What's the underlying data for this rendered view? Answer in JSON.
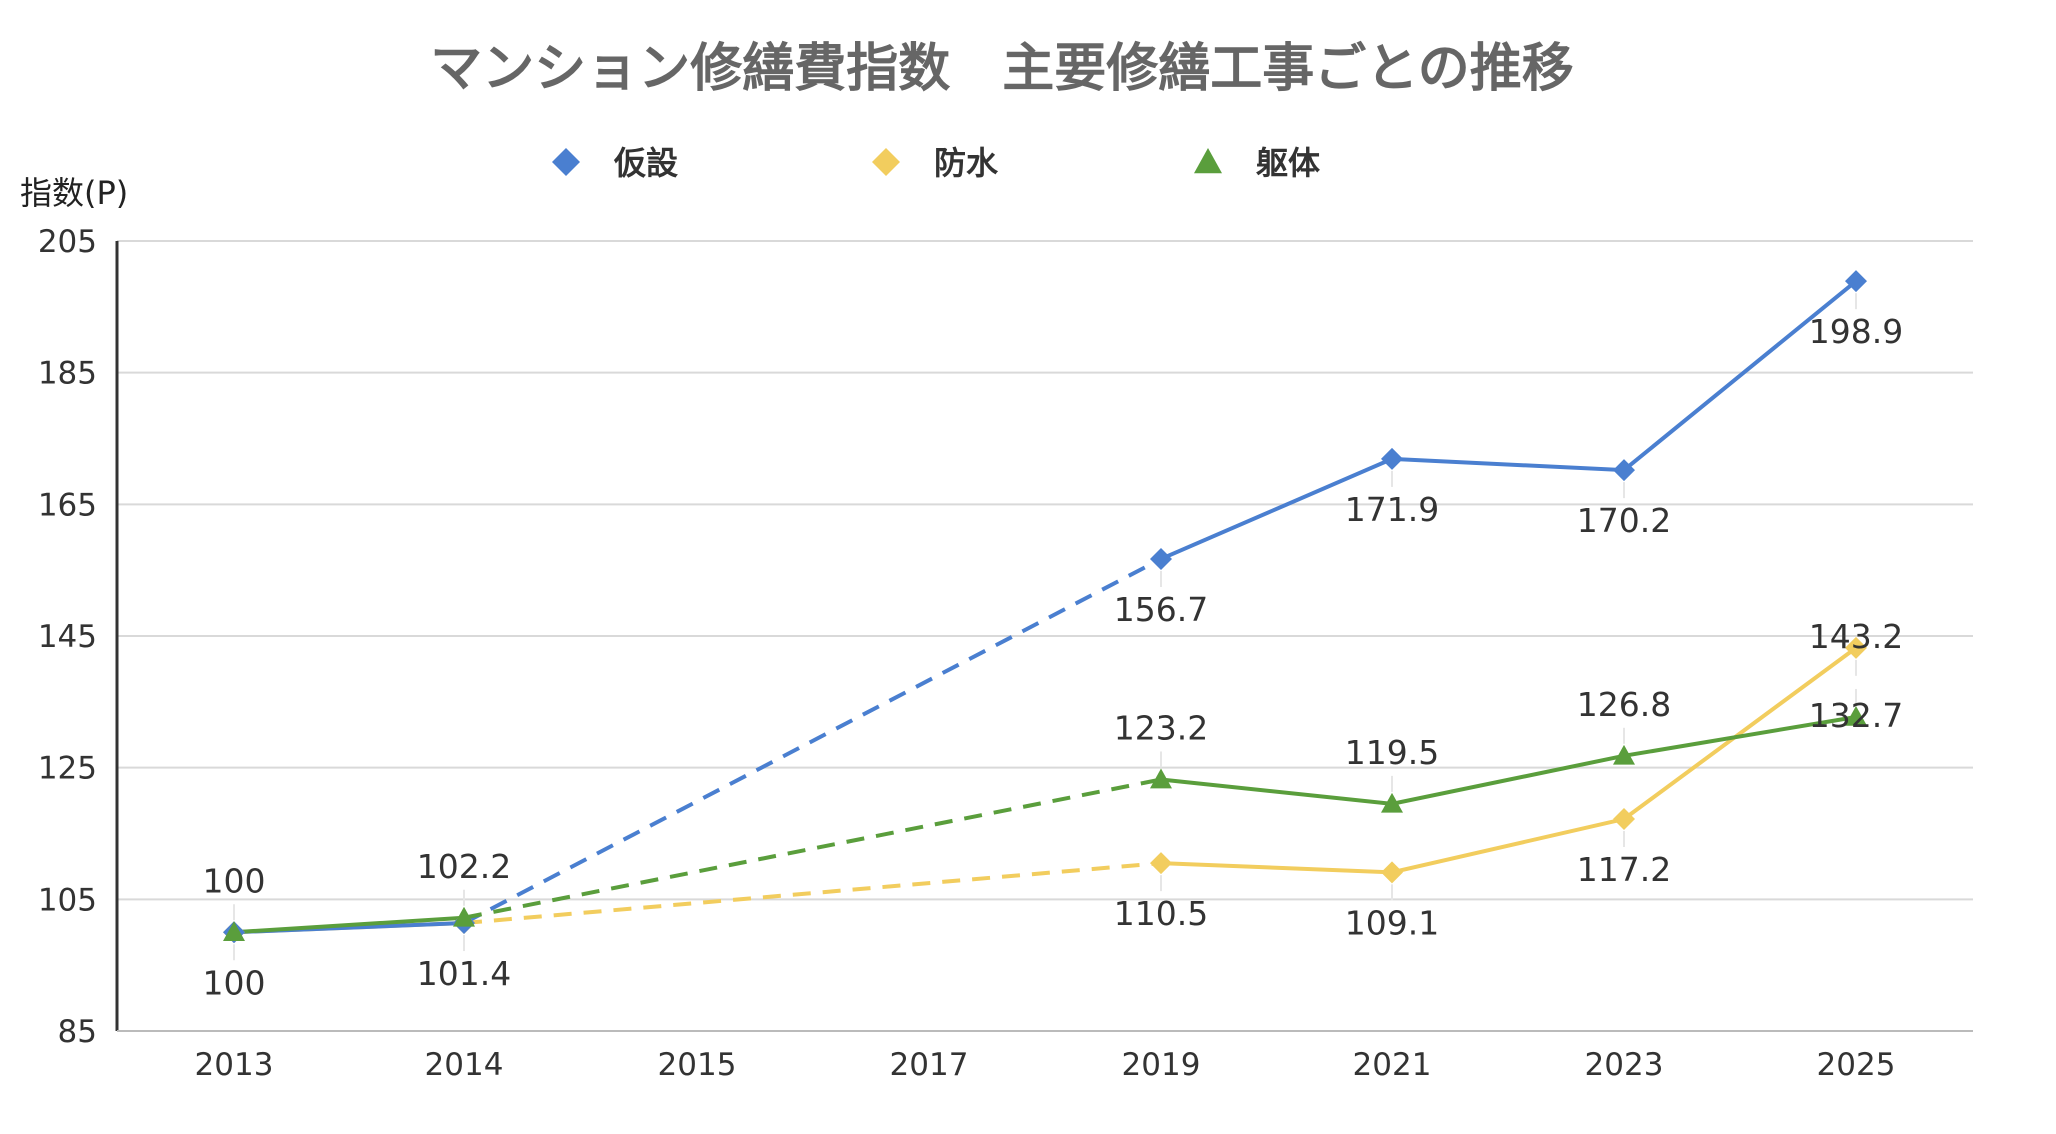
{
  "chart_data": {
    "type": "line",
    "title": "マンション修繕費指数　主要修繕工事ごとの推移",
    "ylabel": "指数(P)",
    "xlabel": "",
    "categories": [
      "2013",
      "2014",
      "2015",
      "2017",
      "2019",
      "2021",
      "2023",
      "2025"
    ],
    "ylim": [
      85,
      205
    ],
    "yticks": [
      85,
      105,
      125,
      145,
      165,
      185,
      205
    ],
    "grid": true,
    "legend_position": "top",
    "dashed_between": [
      "2014",
      "2019"
    ],
    "series": [
      {
        "name": "仮設",
        "color": "#4a7fd0",
        "marker": "diamond",
        "values": [
          100,
          101.4,
          null,
          null,
          156.7,
          171.9,
          170.2,
          198.9
        ],
        "labels": [
          "100",
          "101.4",
          null,
          null,
          "156.7",
          "171.9",
          "170.2",
          "198.9"
        ]
      },
      {
        "name": "防水",
        "color": "#f2cd5e",
        "marker": "diamond",
        "values": [
          100,
          101.4,
          null,
          null,
          110.5,
          109.1,
          117.2,
          143.2
        ],
        "labels": [
          null,
          null,
          null,
          null,
          "110.5",
          "109.1",
          "117.2",
          "143.2"
        ]
      },
      {
        "name": "躯体",
        "color": "#5a9e3c",
        "marker": "triangle",
        "values": [
          100,
          102.2,
          null,
          null,
          123.2,
          119.5,
          126.8,
          132.7
        ],
        "labels": [
          "100",
          "102.2",
          null,
          null,
          "123.2",
          "119.5",
          "126.8",
          "132.7"
        ]
      }
    ]
  }
}
